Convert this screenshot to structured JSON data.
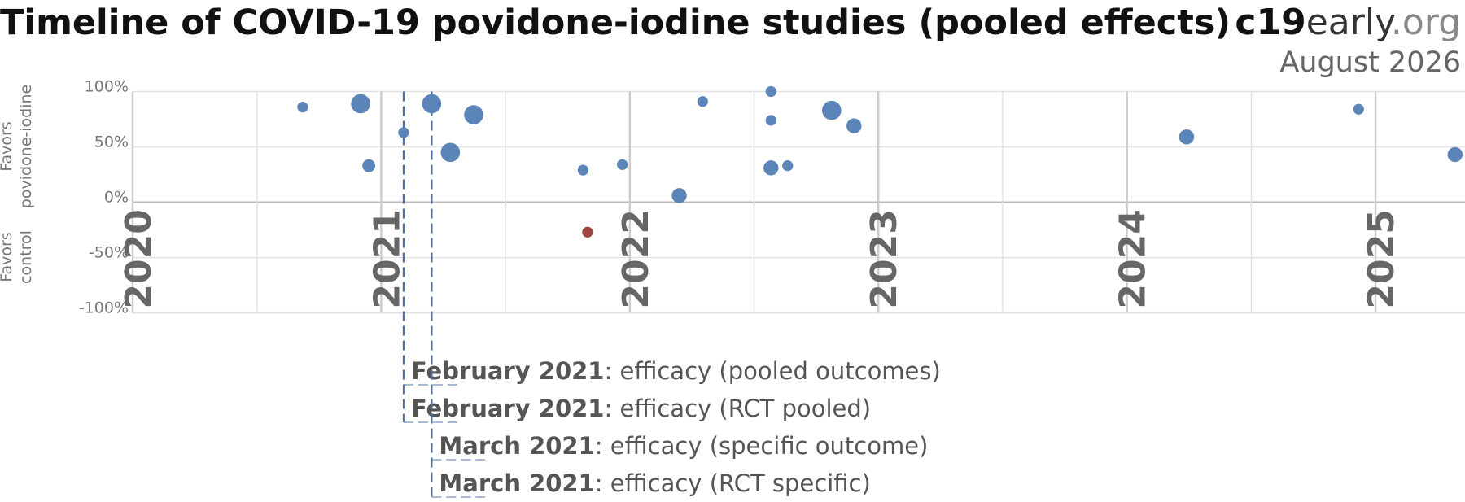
{
  "chart_data": {
    "type": "scatter",
    "title": "Timeline of COVID-19 povidone-iodine studies (pooled effects)",
    "brand": {
      "c19": "c19",
      "early": "early",
      "org": ".org"
    },
    "date": "August 2026",
    "ylabel_positive": [
      "Favors",
      "povidone-iodine"
    ],
    "ylabel_negative": [
      "Favors",
      "control"
    ],
    "xlim": [
      2020,
      2025.36
    ],
    "xticks": [
      2020,
      2021,
      2022,
      2023,
      2024,
      2025
    ],
    "x_minor_grid": [
      2020.5,
      2021.5,
      2022.5,
      2023.5,
      2024.5
    ],
    "ylim": [
      -100,
      100
    ],
    "yticks": [
      {
        "value": -100,
        "label": "-100%"
      },
      {
        "value": -50,
        "label": "-50%"
      },
      {
        "value": 0,
        "label": "0%"
      },
      {
        "value": 50,
        "label": "50%"
      },
      {
        "value": 100,
        "label": "100%"
      }
    ],
    "grid": true,
    "color": "#5b84b8",
    "negative_color": "#a0443f",
    "x": [
      2020.684,
      2020.917,
      2020.95,
      2021.09,
      2021.203,
      2021.278,
      2021.372,
      2021.812,
      2021.83,
      2021.97,
      2022.199,
      2022.293,
      2022.568,
      2022.568,
      2022.568,
      2022.635,
      2022.812,
      2022.902,
      2024.24,
      2024.932,
      2025.32
    ],
    "values": [
      86,
      89,
      33,
      63,
      89,
      45,
      79,
      29,
      -27,
      34,
      6,
      91,
      100,
      74,
      31,
      33,
      83,
      69,
      59,
      84,
      43
    ],
    "sizes": [
      1,
      3,
      1.5,
      1,
      3,
      3,
      3,
      1,
      1,
      1,
      2,
      1,
      1,
      1,
      2,
      1,
      3,
      2,
      2,
      1,
      2
    ],
    "annotations": [
      {
        "x": 2021.09,
        "label": "February 2021",
        "text": ": efficacy (pooled outcomes)"
      },
      {
        "x": 2021.09,
        "label": "February 2021",
        "text": ": efficacy (RCT pooled)"
      },
      {
        "x": 2021.203,
        "label": "March 2021",
        "text": ": efficacy (specific outcome)"
      },
      {
        "x": 2021.203,
        "label": "March 2021",
        "text": ": efficacy (RCT specific)"
      }
    ]
  }
}
